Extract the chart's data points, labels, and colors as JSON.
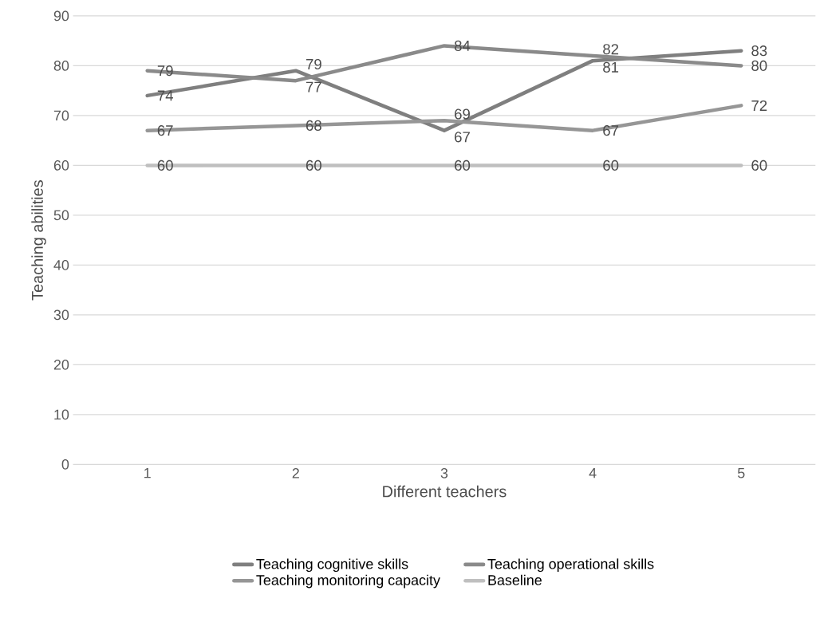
{
  "chart_data": {
    "type": "line",
    "xlabel": "Different teachers",
    "ylabel": "Teaching abilities",
    "categories": [
      "1",
      "2",
      "3",
      "4",
      "5"
    ],
    "series": [
      {
        "name": "Teaching cognitive skills",
        "color": "#7f7f7f",
        "values": [
          74,
          79,
          67,
          81,
          83
        ]
      },
      {
        "name": "Teaching operational skills",
        "color": "#8a8a8a",
        "values": [
          79,
          77,
          84,
          82,
          80
        ]
      },
      {
        "name": "Teaching monitoring capacity",
        "color": "#969696",
        "values": [
          67,
          68,
          69,
          67,
          72
        ]
      },
      {
        "name": "Baseline",
        "color": "#bfbfbf",
        "values": [
          60,
          60,
          60,
          60,
          60
        ]
      }
    ],
    "ylim": [
      0,
      90
    ],
    "yticks": [
      0,
      10,
      20,
      30,
      40,
      50,
      60,
      70,
      80,
      90
    ],
    "grid": "y",
    "legend": "bottom",
    "data_labels": true,
    "marker": "none",
    "line_style": "solid"
  }
}
